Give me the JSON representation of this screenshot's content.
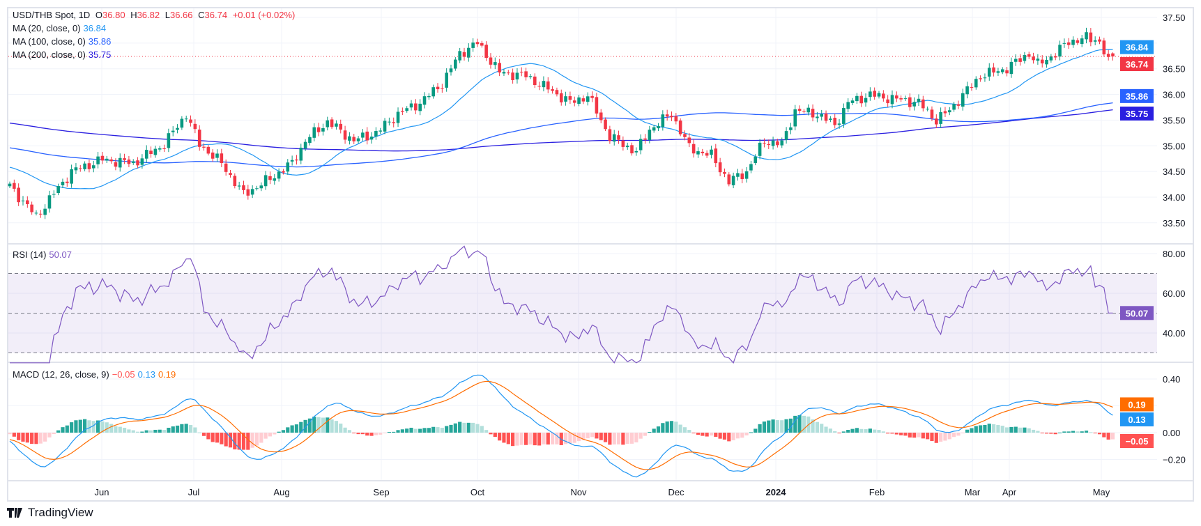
{
  "legend": {
    "symbol": "USD/THB Spot, 1D",
    "open_label": "O",
    "open": "36.80",
    "high_label": "H",
    "high": "36.82",
    "low_label": "L",
    "low": "36.66",
    "close_label": "C",
    "close": "36.74",
    "change": "+0.01 (+0.02%)",
    "ma20_label": "MA (20, close, 0)",
    "ma20": "36.84",
    "ma100_label": "MA (100, close, 0)",
    "ma100": "35.86",
    "ma200_label": "MA (200, close, 0)",
    "ma200": "35.75",
    "rsi_label": "RSI (14)",
    "rsi": "50.07",
    "macd_label": "MACD (12, 26, close, 9)",
    "macd_hist": "−0.05",
    "macd_line": "0.13",
    "macd_signal": "0.19"
  },
  "footer": {
    "brand": "TradingView"
  },
  "colors": {
    "up": "#089981",
    "down": "#F23645",
    "ma20": "#2196F3",
    "ma100": "#2962FF",
    "ma200": "#2A1FE0",
    "rsi": "#7E57C2",
    "macd": "#2196F3",
    "signal": "#FF6D00"
  },
  "chart_data": [
    {
      "type": "candlestick",
      "title": "USD/THB Spot, 1D",
      "x_ticks": [
        "Jun",
        "Jul",
        "Aug",
        "Sep",
        "Oct",
        "Nov",
        "Dec",
        "2024",
        "Feb",
        "Mar",
        "Apr",
        "May"
      ],
      "y_ticks": [
        "37.50",
        "36.50",
        "36.00",
        "35.50",
        "35.00",
        "34.50",
        "34.00",
        "33.50"
      ],
      "ylim": [
        33.3,
        37.8
      ],
      "bars": 251,
      "close_anchors": [
        [
          0,
          34.22
        ],
        [
          6,
          33.62
        ],
        [
          10,
          34.07
        ],
        [
          14,
          34.5
        ],
        [
          21,
          34.73
        ],
        [
          28,
          34.66
        ],
        [
          35,
          35.03
        ],
        [
          40,
          35.62
        ],
        [
          43,
          35.03
        ],
        [
          48,
          34.66
        ],
        [
          53,
          34.05
        ],
        [
          59,
          34.36
        ],
        [
          64,
          34.66
        ],
        [
          67,
          35.1
        ],
        [
          72,
          35.47
        ],
        [
          78,
          35.1
        ],
        [
          83,
          35.25
        ],
        [
          88,
          35.62
        ],
        [
          93,
          35.84
        ],
        [
          98,
          36.21
        ],
        [
          102,
          36.8
        ],
        [
          106,
          37.0
        ],
        [
          111,
          36.43
        ],
        [
          117,
          36.36
        ],
        [
          123,
          36.06
        ],
        [
          127,
          35.84
        ],
        [
          131,
          35.98
        ],
        [
          136,
          35.18
        ],
        [
          142,
          34.88
        ],
        [
          145,
          35.32
        ],
        [
          150,
          35.62
        ],
        [
          154,
          34.96
        ],
        [
          159,
          34.81
        ],
        [
          163,
          34.3
        ],
        [
          167,
          34.5
        ],
        [
          171,
          35.1
        ],
        [
          175,
          35.03
        ],
        [
          178,
          35.69
        ],
        [
          183,
          35.62
        ],
        [
          187,
          35.4
        ],
        [
          190,
          35.84
        ],
        [
          195,
          35.99
        ],
        [
          200,
          35.92
        ],
        [
          206,
          35.84
        ],
        [
          210,
          35.5
        ],
        [
          213,
          35.69
        ],
        [
          216,
          35.99
        ],
        [
          220,
          36.36
        ],
        [
          226,
          36.51
        ],
        [
          231,
          36.8
        ],
        [
          233,
          36.58
        ],
        [
          237,
          36.8
        ],
        [
          240,
          37.03
        ],
        [
          244,
          37.1
        ],
        [
          247,
          37.03
        ],
        [
          248,
          36.78
        ],
        [
          249,
          36.73
        ],
        [
          250,
          36.74
        ]
      ],
      "last_bar": {
        "open": 36.8,
        "high": 36.82,
        "low": 36.66,
        "close": 36.74
      },
      "series": [
        {
          "name": "MA (20, close, 0)",
          "last": 36.84
        },
        {
          "name": "MA (100, close, 0)",
          "last": 35.86
        },
        {
          "name": "MA (200, close, 0)",
          "last": 35.75
        }
      ],
      "price_tags": [
        "36.84",
        "36.74",
        "35.86",
        "35.75"
      ]
    },
    {
      "type": "line",
      "title": "RSI (14)",
      "y_ticks": [
        "80.00",
        "60.00",
        "40.00"
      ],
      "bands": [
        30,
        50,
        70
      ],
      "ylim": [
        25,
        85
      ],
      "last": 50.07,
      "tag": "50.07"
    },
    {
      "type": "bar+line",
      "title": "MACD (12, 26, close, 9)",
      "y_ticks": [
        "0.40",
        "0.00",
        "−0.20"
      ],
      "ylim": [
        -0.33,
        0.47
      ],
      "last": {
        "histogram": -0.05,
        "macd": 0.13,
        "signal": 0.19
      },
      "tags": [
        "0.19",
        "0.13",
        "−0.05"
      ]
    }
  ]
}
